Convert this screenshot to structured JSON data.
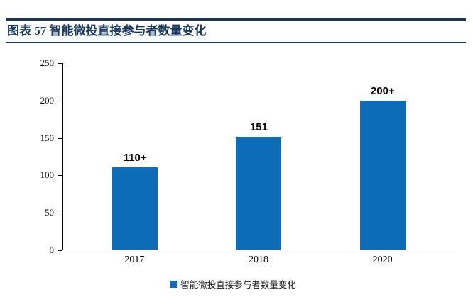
{
  "header": {
    "title": "图表 57  智能微投直接参与者数量变化"
  },
  "chart_data": {
    "type": "bar",
    "title": "图表 57  智能微投直接参与者数量变化",
    "categories": [
      "2017",
      "2018",
      "2020"
    ],
    "values": [
      110,
      151,
      200
    ],
    "data_labels": [
      "110+",
      "151",
      "200+"
    ],
    "xlabel": "",
    "ylabel": "",
    "ylim": [
      0,
      250
    ],
    "yticks": [
      0,
      50,
      100,
      150,
      200,
      250
    ],
    "grid": false,
    "legend": "智能微投直接参与者数量变化",
    "legend_position": "bottom",
    "bar_color": "#0e6bb5"
  },
  "colors": {
    "accent": "#17375E",
    "bar": "#0e6bb5"
  }
}
